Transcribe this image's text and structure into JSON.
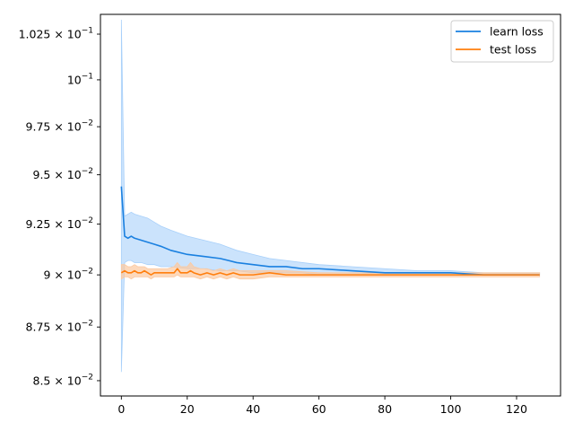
{
  "chart_data": {
    "type": "line",
    "title": "",
    "xlabel": "",
    "ylabel": "",
    "xlim": [
      -6.35,
      133.35
    ],
    "ylim": [
      0.0843,
      0.1036
    ],
    "grid": false,
    "legend_position": "top-right",
    "x_ticks": [
      {
        "value": 0,
        "label": "0"
      },
      {
        "value": 20,
        "label": "20"
      },
      {
        "value": 40,
        "label": "40"
      },
      {
        "value": 60,
        "label": "60"
      },
      {
        "value": 80,
        "label": "80"
      },
      {
        "value": 100,
        "label": "100"
      },
      {
        "value": 120,
        "label": "120"
      }
    ],
    "y_ticks": [
      {
        "value": 0.085,
        "mant": "8.5",
        "exp": "−2"
      },
      {
        "value": 0.0875,
        "mant": "8.75",
        "exp": "−2"
      },
      {
        "value": 0.09,
        "mant": "9",
        "exp": "−2"
      },
      {
        "value": 0.0925,
        "mant": "9.25",
        "exp": "−2"
      },
      {
        "value": 0.095,
        "mant": "9.5",
        "exp": "−2"
      },
      {
        "value": 0.0975,
        "mant": "9.75",
        "exp": "−2"
      },
      {
        "value": 0.1,
        "mant": "10",
        "exp": "−1",
        "plain": true
      },
      {
        "value": 0.1025,
        "mant": "1.025",
        "exp": "−1"
      }
    ],
    "series": [
      {
        "name": "learn loss",
        "color": "#1f77b4",
        "line_color": "#1a80e0",
        "band_color": "#a8d0fa",
        "x": [
          0,
          1,
          2,
          3,
          4,
          6,
          8,
          10,
          12,
          15,
          20,
          25,
          30,
          35,
          40,
          45,
          50,
          55,
          60,
          70,
          80,
          90,
          100,
          110,
          120,
          127
        ],
        "values": [
          0.0944,
          0.0919,
          0.0918,
          0.0919,
          0.0918,
          0.0917,
          0.0916,
          0.0915,
          0.0914,
          0.0912,
          0.091,
          0.0909,
          0.0908,
          0.0906,
          0.0905,
          0.0904,
          0.0904,
          0.0903,
          0.0903,
          0.0902,
          0.0901,
          0.0901,
          0.0901,
          0.09,
          0.09,
          0.09
        ],
        "lower": [
          0.0854,
          0.0906,
          0.0907,
          0.0907,
          0.0906,
          0.0906,
          0.0905,
          0.0905,
          0.0904,
          0.0904,
          0.0903,
          0.0903,
          0.0902,
          0.0902,
          0.0901,
          0.0901,
          0.0901,
          0.0901,
          0.09,
          0.09,
          0.09,
          0.09,
          0.09,
          0.09,
          0.09,
          0.09
        ],
        "upper": [
          0.1033,
          0.0929,
          0.093,
          0.0931,
          0.093,
          0.0929,
          0.0928,
          0.0926,
          0.0924,
          0.0922,
          0.0919,
          0.0917,
          0.0915,
          0.0912,
          0.091,
          0.0908,
          0.0907,
          0.0906,
          0.0905,
          0.0904,
          0.0903,
          0.0902,
          0.0902,
          0.0901,
          0.0901,
          0.0901
        ]
      },
      {
        "name": "test loss",
        "color": "#ff7f0e",
        "line_color": "#ff7f0e",
        "band_color": "#fcc9a0",
        "x": [
          0,
          1,
          2,
          3,
          4,
          5,
          6,
          7,
          8,
          9,
          10,
          12,
          14,
          16,
          17,
          18,
          20,
          21,
          22,
          24,
          26,
          28,
          30,
          32,
          34,
          36,
          40,
          45,
          50,
          60,
          70,
          80,
          90,
          100,
          110,
          120,
          127
        ],
        "values": [
          0.0901,
          0.0902,
          0.0901,
          0.0901,
          0.0902,
          0.0901,
          0.0901,
          0.0902,
          0.0901,
          0.09,
          0.0901,
          0.0901,
          0.0901,
          0.0901,
          0.0903,
          0.0901,
          0.0901,
          0.0902,
          0.0901,
          0.09,
          0.0901,
          0.09,
          0.0901,
          0.09,
          0.0901,
          0.09,
          0.09,
          0.0901,
          0.09,
          0.09,
          0.09,
          0.09,
          0.09,
          0.09,
          0.09,
          0.09,
          0.09
        ],
        "lower": [
          0.0898,
          0.0899,
          0.0899,
          0.0898,
          0.0899,
          0.0899,
          0.0899,
          0.0899,
          0.0899,
          0.0898,
          0.0899,
          0.0899,
          0.0899,
          0.0899,
          0.09,
          0.0899,
          0.0899,
          0.0899,
          0.0899,
          0.0898,
          0.0899,
          0.0898,
          0.0899,
          0.0898,
          0.0899,
          0.0898,
          0.0898,
          0.0899,
          0.0899,
          0.0899,
          0.0899,
          0.0899,
          0.0899,
          0.0899,
          0.0899,
          0.0899,
          0.0899
        ],
        "upper": [
          0.0905,
          0.0905,
          0.0904,
          0.0904,
          0.0905,
          0.0904,
          0.0904,
          0.0904,
          0.0903,
          0.0903,
          0.0903,
          0.0903,
          0.0903,
          0.0904,
          0.0906,
          0.0904,
          0.0904,
          0.0906,
          0.0904,
          0.0903,
          0.0903,
          0.0902,
          0.0903,
          0.0902,
          0.0903,
          0.0902,
          0.0902,
          0.0902,
          0.0902,
          0.0901,
          0.0901,
          0.0901,
          0.0901,
          0.0901,
          0.0901,
          0.0901,
          0.0901
        ]
      }
    ]
  }
}
